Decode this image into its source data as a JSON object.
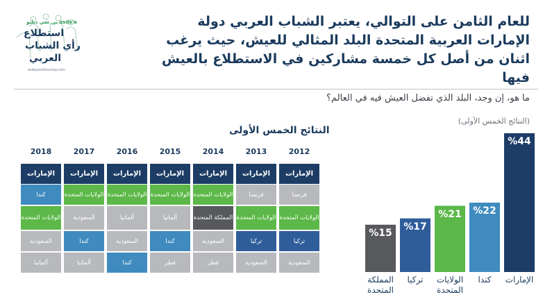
{
  "logo": {
    "brand": "بي سي دبليو  asda'a",
    "line1": "استطلاع",
    "line2": "رأي الشباب",
    "line3": "العربي",
    "url": "arabyouthsurvey.com"
  },
  "headline": "للعام الثامن على التوالي، يعتبر الشباب العربي دولة الإمارات العربية المتحدة البلد المثالي للعيش، حيث يرغب اثنان من أصل كل خمسة مشاركين في الاستطلاع بالعيش فيها",
  "question": "ما هو، إن وجد، البلد الذي تفضل العيش فيه في العالم؟",
  "table": {
    "title": "النتائج الخمس الأولى",
    "years": [
      "2012",
      "2013",
      "2014",
      "2015",
      "2016",
      "2017",
      "2018"
    ],
    "columns": [
      [
        "الإمارات",
        "فرنسا",
        "الولايات المتحدة",
        "تركيا",
        "السعودية"
      ],
      [
        "الإمارات",
        "فرنسا",
        "الولايات المتحدة",
        "تركيا",
        "السعودية"
      ],
      [
        "الإمارات",
        "الولايات المتحدة",
        "المملكة المتحدة",
        "السعودية",
        "قطر"
      ],
      [
        "الإمارات",
        "الولايات المتحدة",
        "ألمانيا",
        "كندا",
        "قطر"
      ],
      [
        "الإمارات",
        "الولايات المتحدة",
        "ألمانيا",
        "السعودية",
        "كندا"
      ],
      [
        "الإمارات",
        "الولايات المتحدة",
        "السعودية",
        "كندا",
        "ألمانيا"
      ],
      [
        "الإمارات",
        "كندا",
        "الولايات المتحدة",
        "السعودية",
        "ألمانيا"
      ]
    ],
    "country_colors": {
      "الإمارات": "#1d3d66",
      "الولايات المتحدة": "#5cb848",
      "كندا": "#3f8bbf",
      "تركيا": "#2f5d9a",
      "المملكة المتحدة": "#57595c",
      "فرنسا": "#b7b9bc",
      "السعودية": "#b7b9bc",
      "ألمانيا": "#b7b9bc",
      "قطر": "#b7b9bc"
    }
  },
  "chart_data": {
    "type": "bar",
    "subtitle": "(النتائج الخمس الأولى)",
    "categories": [
      "الإمارات",
      "كندا",
      "الولايات المتحدة",
      "تركيا",
      "المملكة المتحدة"
    ],
    "values": [
      44,
      22,
      21,
      17,
      15
    ],
    "value_labels": [
      "%44",
      "%22",
      "%21",
      "%17",
      "%15"
    ],
    "colors": [
      "#1d3d66",
      "#3f8bbf",
      "#5cb848",
      "#2f5d9a",
      "#57595c"
    ],
    "unit": "%",
    "order": "right-to-left",
    "title": "",
    "xlabel": "",
    "ylabel": ""
  }
}
